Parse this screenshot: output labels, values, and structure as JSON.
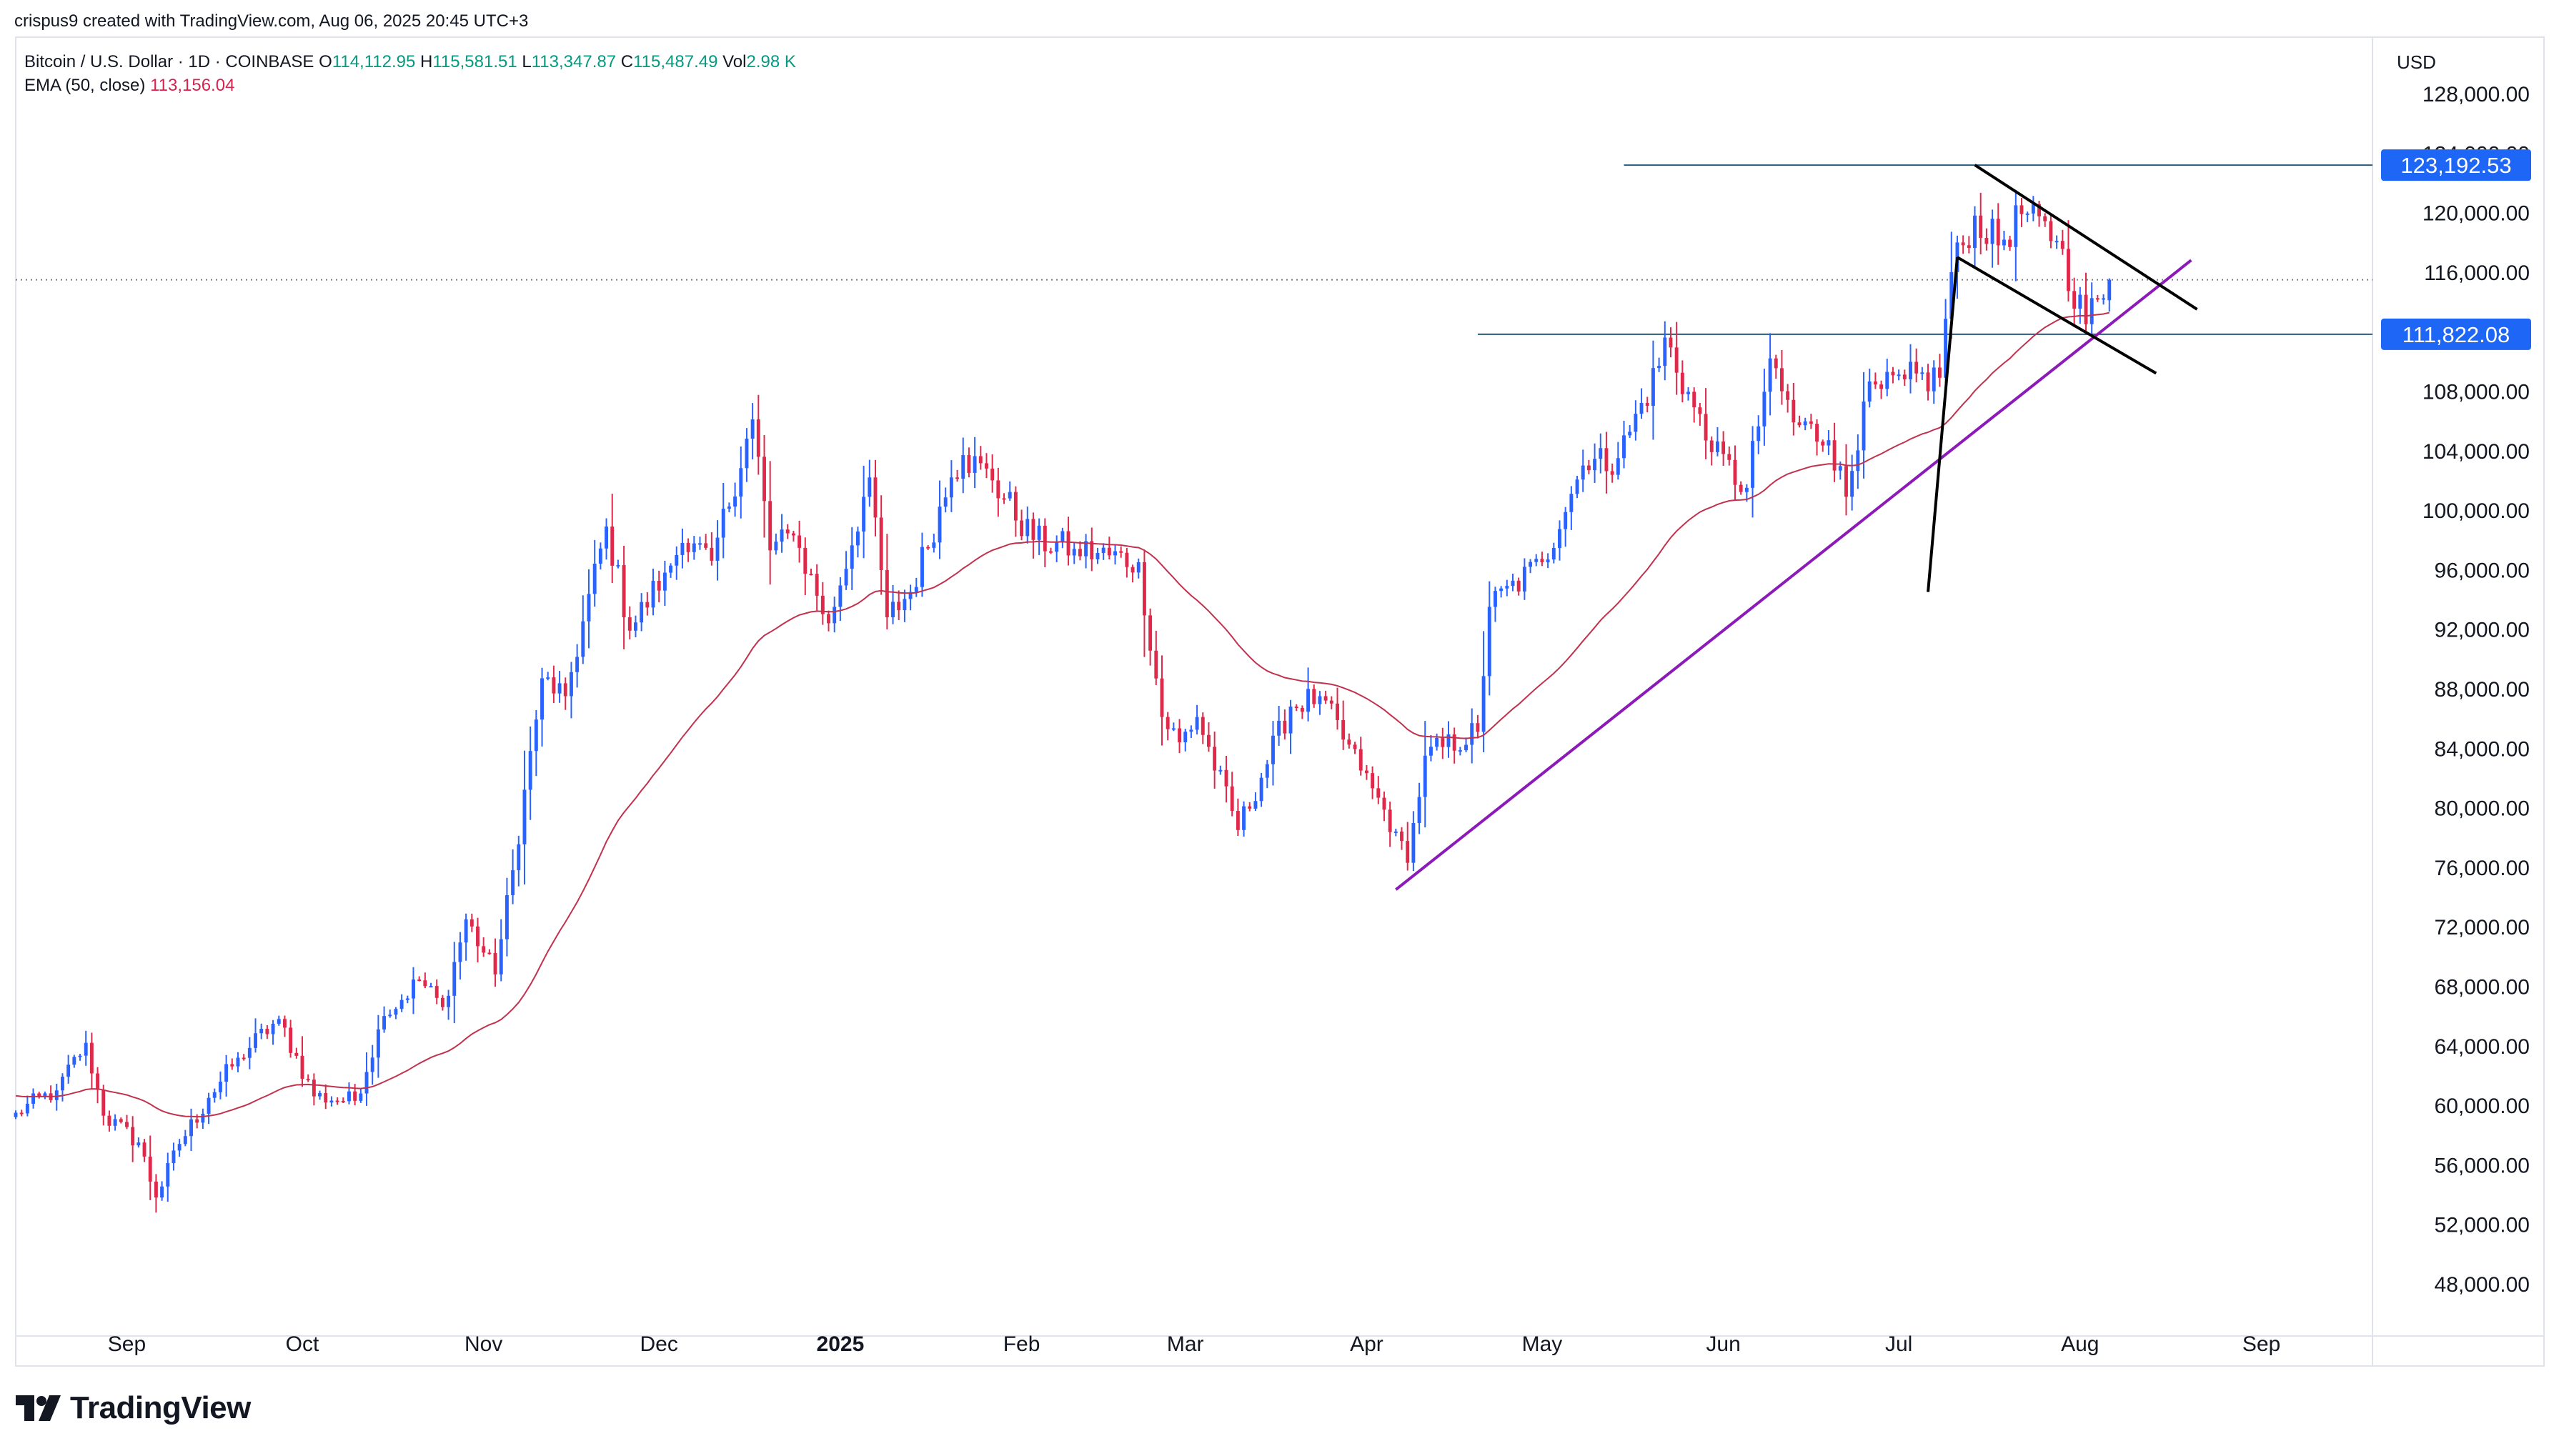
{
  "attribution": "crispus9 created with TradingView.com, Aug 06, 2025 20:45 UTC+3",
  "legend": {
    "symbol": "Bitcoin / U.S. Dollar · 1D · COINBASE",
    "open_key": "O",
    "open": "114,112.95",
    "high_key": "H",
    "high": "115,581.51",
    "low_key": "L",
    "low": "113,347.87",
    "close_key": "C",
    "close": "115,487.49",
    "vol_key": "Vol",
    "vol": "2.98 K",
    "ema_label": "EMA (50, close)",
    "ema_value": "113,156.04"
  },
  "currency": "USD",
  "brand": "TradingView",
  "colors": {
    "up": "#2962ff",
    "down": "#e0294a",
    "ema": "#c0324e",
    "level_line": "#2a5b7a",
    "level_label_bg": "#1e66f5",
    "trendline": "#8b1ab8",
    "pattern": "#000000"
  },
  "chart_data": {
    "type": "candlestick",
    "y_scale": "linear",
    "ylim": [
      44000,
      132000
    ],
    "y_ticks": [
      "128,000.00",
      "124,000.00",
      "120,000.00",
      "116,000.00",
      "112,000.00",
      "108,000.00",
      "104,000.00",
      "100,000.00",
      "96,000.00",
      "92,000.00",
      "88,000.00",
      "84,000.00",
      "80,000.00",
      "76,000.00",
      "72,000.00",
      "68,000.00",
      "64,000.00",
      "60,000.00",
      "56,000.00",
      "52,000.00",
      "48,000.00"
    ],
    "x_range": [
      "2024-08-13",
      "2025-09-20"
    ],
    "x_labels": [
      {
        "label": "Sep",
        "date": "2024-09-01"
      },
      {
        "label": "Oct",
        "date": "2024-10-01"
      },
      {
        "label": "Nov",
        "date": "2024-11-01"
      },
      {
        "label": "Dec",
        "date": "2024-12-01"
      },
      {
        "label": "2025",
        "date": "2025-01-01",
        "bold": true
      },
      {
        "label": "Feb",
        "date": "2025-02-01"
      },
      {
        "label": "Mar",
        "date": "2025-03-01"
      },
      {
        "label": "Apr",
        "date": "2025-04-01"
      },
      {
        "label": "May",
        "date": "2025-05-01"
      },
      {
        "label": "Jun",
        "date": "2025-06-01"
      },
      {
        "label": "Jul",
        "date": "2025-07-01"
      },
      {
        "label": "Aug",
        "date": "2025-08-01"
      },
      {
        "label": "Sep",
        "date": "2025-09-01"
      }
    ],
    "price_anchors": [
      [
        "2024-08-13",
        59500
      ],
      [
        "2024-08-20",
        61000
      ],
      [
        "2024-08-25",
        64200
      ],
      [
        "2024-08-28",
        59300
      ],
      [
        "2024-09-03",
        57500
      ],
      [
        "2024-09-06",
        53800
      ],
      [
        "2024-09-10",
        57400
      ],
      [
        "2024-09-15",
        60500
      ],
      [
        "2024-09-20",
        63200
      ],
      [
        "2024-09-27",
        65800
      ],
      [
        "2024-10-03",
        60600
      ],
      [
        "2024-10-10",
        60300
      ],
      [
        "2024-10-15",
        66000
      ],
      [
        "2024-10-21",
        68400
      ],
      [
        "2024-10-25",
        66600
      ],
      [
        "2024-10-29",
        72500
      ],
      [
        "2024-11-03",
        68800
      ],
      [
        "2024-11-06",
        75800
      ],
      [
        "2024-11-11",
        88700
      ],
      [
        "2024-11-15",
        87500
      ],
      [
        "2024-11-22",
        98900
      ],
      [
        "2024-11-26",
        91900
      ],
      [
        "2024-12-02",
        95800
      ],
      [
        "2024-12-05",
        97800
      ],
      [
        "2024-12-10",
        96600
      ],
      [
        "2024-12-17",
        106100
      ],
      [
        "2024-12-20",
        97300
      ],
      [
        "2024-12-24",
        98300
      ],
      [
        "2024-12-30",
        92400
      ],
      [
        "2025-01-06",
        102200
      ],
      [
        "2025-01-09",
        92800
      ],
      [
        "2025-01-13",
        94500
      ],
      [
        "2025-01-20",
        102200
      ],
      [
        "2025-01-22",
        103700
      ],
      [
        "2025-01-27",
        102000
      ],
      [
        "2025-02-03",
        98000
      ],
      [
        "2025-02-10",
        97400
      ],
      [
        "2025-02-21",
        96500
      ],
      [
        "2025-02-25",
        86100
      ],
      [
        "2025-02-28",
        84400
      ],
      [
        "2025-03-03",
        86100
      ],
      [
        "2025-03-10",
        78500
      ],
      [
        "2025-03-19",
        86800
      ],
      [
        "2025-03-24",
        87500
      ],
      [
        "2025-03-31",
        82500
      ],
      [
        "2025-04-06",
        78400
      ],
      [
        "2025-04-08",
        76300
      ],
      [
        "2025-04-11",
        83500
      ],
      [
        "2025-04-20",
        85100
      ],
      [
        "2025-04-22",
        93500
      ],
      [
        "2025-05-01",
        96500
      ],
      [
        "2025-05-08",
        103000
      ],
      [
        "2025-05-14",
        103500
      ],
      [
        "2025-05-21",
        109700
      ],
      [
        "2025-05-22",
        111600
      ],
      [
        "2025-05-30",
        103900
      ],
      [
        "2025-06-05",
        101500
      ],
      [
        "2025-06-09",
        110200
      ],
      [
        "2025-06-13",
        105900
      ],
      [
        "2025-06-19",
        104700
      ],
      [
        "2025-06-22",
        100900
      ],
      [
        "2025-06-25",
        107300
      ],
      [
        "2025-07-02",
        108800
      ],
      [
        "2025-07-08",
        108900
      ],
      [
        "2025-07-10",
        116000
      ],
      [
        "2025-07-14",
        119800
      ],
      [
        "2025-07-18",
        117800
      ],
      [
        "2025-07-22",
        119900
      ],
      [
        "2025-07-28",
        118100
      ],
      [
        "2025-08-02",
        112500
      ],
      [
        "2025-08-04",
        114200
      ],
      [
        "2025-08-06",
        115487
      ]
    ],
    "last_candle": {
      "date": "2025-08-06",
      "open": 114112.95,
      "high": 115581.51,
      "low": 113347.87,
      "close": 115487.49
    },
    "ema": {
      "period": 50,
      "last_value": 113156.04
    },
    "last_price_line": 115487.49,
    "horizontal_levels": [
      {
        "label": "123,192.53",
        "value": 123192.53,
        "from": "2025-05-15"
      },
      {
        "label": "111,822.08",
        "value": 111822.08,
        "from": "2025-04-20"
      }
    ],
    "drawings": [
      {
        "kind": "rising-trendline",
        "points": [
          [
            "2025-04-06",
            74500
          ],
          [
            "2025-08-20",
            116800
          ]
        ]
      },
      {
        "kind": "flag-pole",
        "points": [
          [
            "2025-07-06",
            94500
          ],
          [
            "2025-07-11",
            117000
          ]
        ]
      },
      {
        "kind": "flag-upper",
        "points": [
          [
            "2025-07-14",
            123200
          ],
          [
            "2025-08-21",
            113500
          ]
        ]
      },
      {
        "kind": "flag-lower",
        "points": [
          [
            "2025-07-11",
            117000
          ],
          [
            "2025-08-14",
            109200
          ]
        ]
      }
    ]
  }
}
